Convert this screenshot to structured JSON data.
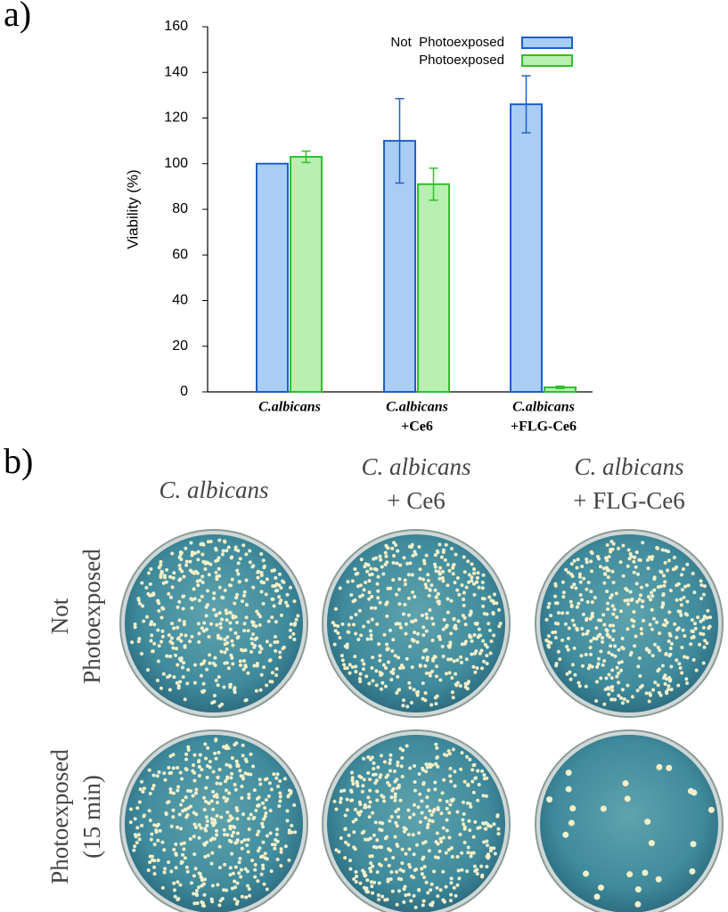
{
  "chart_data": {
    "type": "bar",
    "categories": [
      [
        "C.albicans"
      ],
      [
        "C.albicans",
        "+Ce6"
      ],
      [
        "C.albicans",
        "+FLG-Ce6"
      ]
    ],
    "y_label": "Viability (%)",
    "ylim": [
      0,
      160
    ],
    "yticks": [
      0,
      20,
      40,
      60,
      80,
      100,
      120,
      140,
      160
    ],
    "series": [
      {
        "name": "Not  Photoexposed",
        "color": "#1f5fc8",
        "fill": "#a9cdf4",
        "values": [
          100,
          110,
          126
        ],
        "errors": [
          0,
          18.5,
          12.5
        ]
      },
      {
        "name": "Photoexposed",
        "color": "#2ec02e",
        "fill": "#b7f0b0",
        "values": [
          103,
          91,
          2
        ],
        "errors": [
          2.5,
          7,
          0.5
        ]
      }
    ],
    "legend": "upper right"
  },
  "panel_labels": [
    "a)",
    "b)"
  ],
  "plates": {
    "columns": [
      [
        "C. albicans"
      ],
      [
        "C. albicans",
        "+ Ce6"
      ],
      [
        "C. albicans",
        "+ FLG-Ce6"
      ]
    ],
    "rows": [
      [
        "Not",
        "Photoexposed"
      ],
      [
        "Photoexposed",
        "(15 min)"
      ]
    ]
  }
}
